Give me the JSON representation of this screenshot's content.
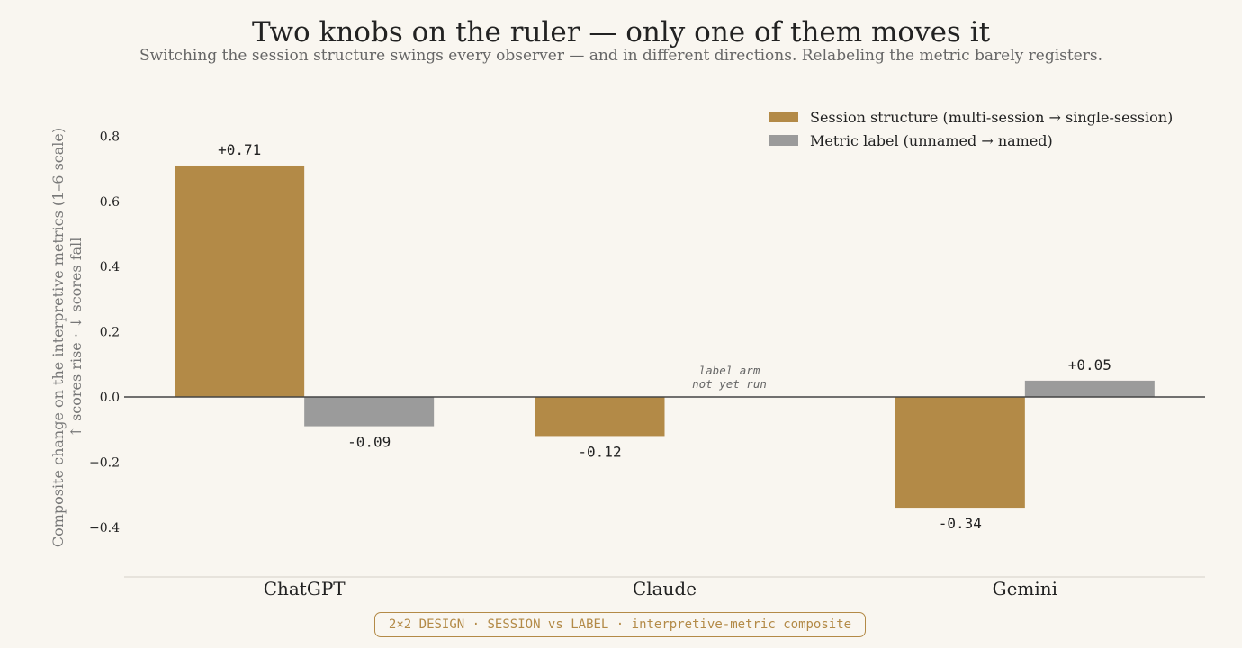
{
  "title": "Two knobs on the ruler — only one of them moves it",
  "subtitle": "Switching the session structure swings every observer — and in different directions. Relabeling the metric barely registers.",
  "footer_badge": "2×2 DESIGN · SESSION vs LABEL · interpretive-metric composite",
  "colors": {
    "session": "#b38a47",
    "label": "#9b9b9b",
    "background": "#f9f6f0"
  },
  "chart_data": {
    "type": "bar",
    "categories": [
      "ChatGPT",
      "Claude",
      "Gemini"
    ],
    "series": [
      {
        "name": "Session structure  (multi-session → single-session)",
        "values": [
          0.71,
          -0.12,
          -0.34
        ],
        "labels": [
          "+0.71",
          "-0.12",
          "-0.34"
        ]
      },
      {
        "name": "Metric label  (unnamed → named)",
        "values": [
          -0.09,
          null,
          0.05
        ],
        "labels": [
          "-0.09",
          "",
          "+0.05"
        ]
      }
    ],
    "ylabel_line1": "Composite change on the interpretive metrics  (1–6 scale)",
    "ylabel_line2": "↑ scores rise   ·   ↓ scores fall",
    "yticks": [
      0.8,
      0.6,
      0.4,
      0.2,
      0.0,
      -0.2,
      -0.4
    ],
    "ytick_labels": [
      "0.8",
      "0.6",
      "0.4",
      "0.2",
      "0.0",
      "−0.2",
      "−0.4"
    ],
    "ylim": [
      -0.55,
      0.82
    ],
    "annotation": {
      "category": "Claude",
      "series": 1,
      "line1": "label arm",
      "line2": "not yet run"
    },
    "legend_position": "top-right",
    "grid": false
  }
}
